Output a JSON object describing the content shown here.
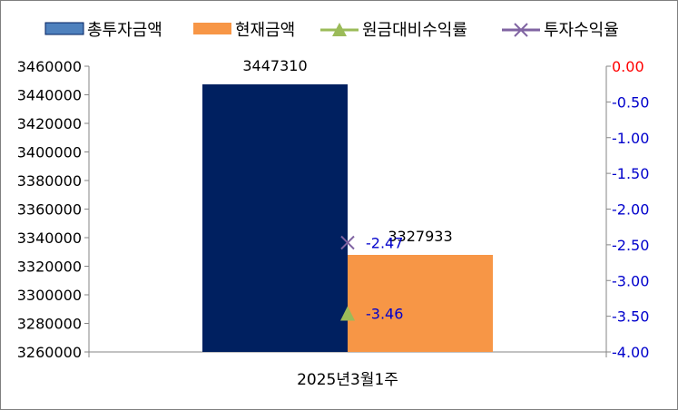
{
  "chart_data": {
    "type": "bar",
    "categories": [
      "2025년3월1주"
    ],
    "series": [
      {
        "name": "총투자금액",
        "kind": "bar",
        "axis": "left",
        "color": "#002060",
        "values": [
          3447310
        ],
        "data_labels": [
          "3447310"
        ]
      },
      {
        "name": "현재금액",
        "kind": "bar",
        "axis": "left",
        "color": "#f79646",
        "values": [
          3327933
        ],
        "data_labels": [
          "3327933"
        ]
      },
      {
        "name": "원금대비수익률",
        "kind": "marker",
        "marker": "triangle",
        "axis": "right",
        "color": "#9bbb59",
        "values": [
          -3.46
        ],
        "data_labels": [
          "-3.46"
        ]
      },
      {
        "name": "투자수익율",
        "kind": "marker",
        "marker": "x",
        "axis": "right",
        "color": "#8064a2",
        "values": [
          -2.47
        ],
        "data_labels": [
          "-2.47"
        ]
      }
    ],
    "left_axis": {
      "min": 3260000,
      "max": 3460000,
      "step": 20000,
      "ticks": [
        "3460000",
        "3440000",
        "3420000",
        "3400000",
        "3380000",
        "3360000",
        "3340000",
        "3320000",
        "3300000",
        "3280000",
        "3260000"
      ]
    },
    "right_axis": {
      "min": -4.0,
      "max": 0.0,
      "step": 0.5,
      "ticks": [
        "0.00",
        "-0.50",
        "-1.00",
        "-1.50",
        "-2.00",
        "-2.50",
        "-3.00",
        "-3.50",
        "-4.00"
      ],
      "top_tick_color": "#ff0000",
      "tick_color": "#0000cc"
    },
    "legend_position": "top",
    "grid": false,
    "label_color_right": "#0000cc",
    "legend_bar_color": "#4f81bd"
  }
}
